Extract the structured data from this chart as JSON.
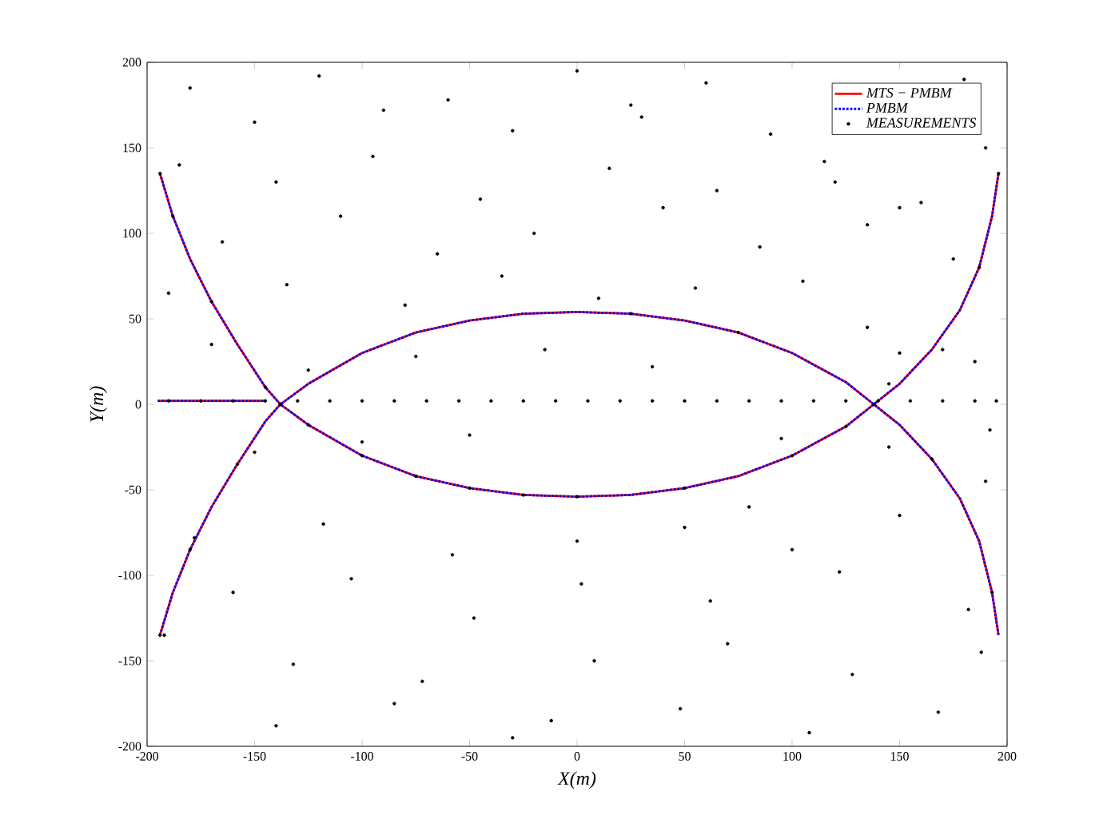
{
  "chart_data": {
    "type": "line",
    "xlabel": "X(m)",
    "ylabel": "Y(m)",
    "xlim": [
      -200,
      200
    ],
    "ylim": [
      -200,
      200
    ],
    "xticks": [
      -200,
      -150,
      -100,
      -50,
      0,
      50,
      100,
      150,
      200
    ],
    "yticks": [
      -200,
      -150,
      -100,
      -50,
      0,
      50,
      100,
      150,
      200
    ],
    "legend": "top right",
    "grid": false,
    "series": [
      {
        "name": "MTS − PMBM",
        "color": "#ff0000",
        "line_style": "solid",
        "marker": "none",
        "x": [
          -194,
          -188,
          -180,
          -170,
          -158,
          -145,
          -138,
          -125,
          -100,
          -75,
          -50,
          -25,
          0,
          25,
          50,
          75,
          100,
          125,
          138,
          150,
          165,
          178,
          187,
          193,
          196,
          null,
          -194,
          -188,
          -180,
          -170,
          -158,
          -145,
          -138,
          -125,
          -100,
          -75,
          -50,
          -25,
          0,
          25,
          50,
          75,
          100,
          125,
          138,
          150,
          165,
          178,
          187,
          193,
          196,
          null,
          -195,
          -145
        ],
        "values": [
          135,
          110,
          85,
          60,
          35,
          10,
          0,
          -12,
          -30,
          -42,
          -49,
          -53,
          -54,
          -53,
          -49,
          -42,
          -30,
          -13,
          0,
          12,
          32,
          55,
          80,
          110,
          135,
          null,
          -135,
          -110,
          -85,
          -60,
          -35,
          -10,
          0,
          12,
          30,
          42,
          49,
          53,
          54,
          53,
          49,
          42,
          30,
          13,
          0,
          -12,
          -32,
          -55,
          -80,
          -110,
          -135,
          null,
          2,
          2
        ]
      },
      {
        "name": "PMBM",
        "color": "#0000ff",
        "line_style": "dotted",
        "marker": "none",
        "x": [
          -194,
          -188,
          -180,
          -170,
          -158,
          -145,
          -138,
          -125,
          -100,
          -75,
          -50,
          -25,
          0,
          25,
          50,
          75,
          100,
          125,
          138,
          150,
          165,
          178,
          187,
          193,
          196,
          null,
          -194,
          -188,
          -180,
          -170,
          -158,
          -145,
          -138,
          -125,
          -100,
          -75,
          -50,
          -25,
          0,
          25,
          50,
          75,
          100,
          125,
          138,
          150,
          165,
          178,
          187,
          193,
          196,
          null,
          -195,
          -145
        ],
        "values": [
          135,
          110,
          85,
          60,
          35,
          10,
          0,
          -12,
          -30,
          -42,
          -49,
          -53,
          -54,
          -53,
          -49,
          -42,
          -30,
          -13,
          0,
          12,
          32,
          55,
          80,
          110,
          135,
          null,
          -135,
          -110,
          -85,
          -60,
          -35,
          -10,
          0,
          12,
          30,
          42,
          49,
          53,
          54,
          53,
          49,
          42,
          30,
          13,
          0,
          -12,
          -32,
          -55,
          -80,
          -110,
          -135,
          null,
          2,
          2
        ]
      },
      {
        "name": "MEASUREMENTS",
        "type": "scatter",
        "color": "#000000",
        "marker": "circle",
        "x": [
          -190,
          -175,
          -160,
          -145,
          -130,
          -115,
          -100,
          -85,
          -70,
          -55,
          -40,
          -25,
          -10,
          5,
          20,
          35,
          50,
          65,
          80,
          95,
          110,
          125,
          140,
          155,
          170,
          185,
          195,
          -180,
          -120,
          -60,
          0,
          60,
          120,
          180,
          -150,
          -90,
          -30,
          30,
          90,
          150,
          -194,
          -188,
          -170,
          -145,
          -125,
          -100,
          -50,
          0,
          50,
          100,
          125,
          145,
          170,
          187,
          196,
          -194,
          -180,
          -158,
          -138,
          -75,
          -25,
          25,
          75,
          138,
          165,
          193,
          -185,
          -140,
          -95,
          -45,
          15,
          65,
          115,
          160,
          190,
          -165,
          -110,
          -65,
          -20,
          40,
          85,
          135,
          175,
          -190,
          -135,
          -80,
          -35,
          10,
          55,
          105,
          150,
          185,
          -170,
          -125,
          -75,
          -15,
          35,
          95,
          145,
          192,
          -150,
          -100,
          -50,
          0,
          50,
          100,
          150,
          -178,
          -118,
          -58,
          2,
          62,
          122,
          182,
          -160,
          -105,
          -48,
          8,
          70,
          128,
          188,
          -192,
          -132,
          -72,
          -12,
          48,
          108,
          168,
          -140,
          -85,
          -30,
          25,
          80,
          135,
          190
        ],
        "values": [
          2,
          2,
          2,
          2,
          2,
          2,
          2,
          2,
          2,
          2,
          2,
          2,
          2,
          2,
          2,
          2,
          2,
          2,
          2,
          2,
          2,
          2,
          2,
          2,
          2,
          2,
          2,
          185,
          192,
          178,
          195,
          188,
          130,
          190,
          165,
          172,
          160,
          168,
          158,
          115,
          135,
          110,
          60,
          10,
          -12,
          -30,
          -49,
          -54,
          -49,
          -30,
          -13,
          12,
          32,
          80,
          135,
          -135,
          -85,
          -35,
          0,
          -42,
          -53,
          53,
          42,
          0,
          -32,
          -110,
          140,
          130,
          145,
          120,
          138,
          125,
          142,
          118,
          150,
          95,
          110,
          88,
          100,
          115,
          92,
          105,
          85,
          65,
          70,
          58,
          75,
          62,
          68,
          72,
          30,
          25,
          35,
          20,
          28,
          32,
          22,
          -20,
          -25,
          -15,
          -28,
          -22,
          -18,
          -80,
          -72,
          -85,
          -65,
          -78,
          -70,
          -88,
          -105,
          -115,
          -98,
          -120,
          -110,
          -102,
          -125,
          -150,
          -140,
          -158,
          -145,
          -135,
          -152,
          -162,
          -185,
          -178,
          -192,
          -180,
          -188,
          -175,
          -195,
          175,
          -60,
          45,
          -45
        ]
      }
    ]
  }
}
